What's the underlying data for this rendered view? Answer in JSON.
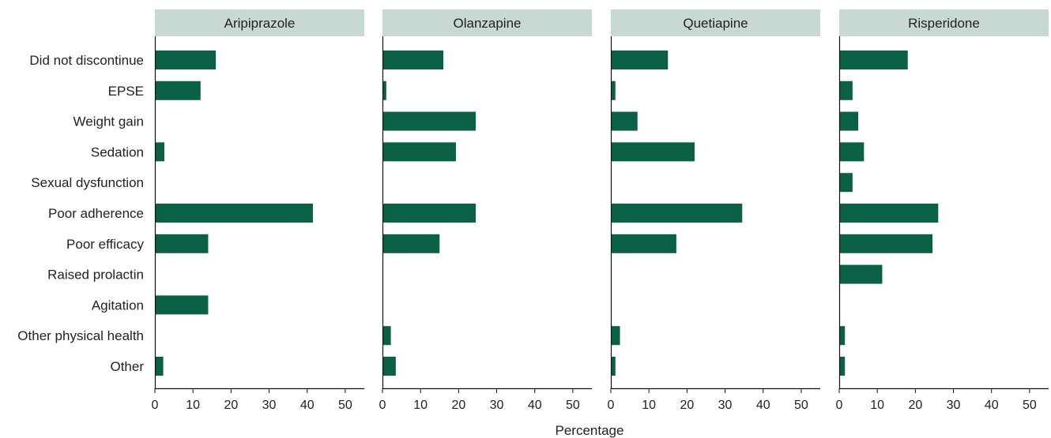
{
  "chart_data": {
    "type": "bar",
    "orientation": "horizontal",
    "xlabel": "Percentage",
    "xlim": [
      0,
      55
    ],
    "xticks": [
      0,
      10,
      20,
      30,
      40,
      50
    ],
    "categories": [
      "Did not discontinue",
      "EPSE",
      "Weight gain",
      "Sedation",
      "Sexual dysfunction",
      "Poor adherence",
      "Poor efficacy",
      "Raised prolactin",
      "Agitation",
      "Other physical health",
      "Other"
    ],
    "series": [
      {
        "name": "Aripiprazole",
        "values": [
          16,
          12,
          0,
          2.5,
          0,
          41.5,
          14,
          0,
          14,
          0,
          2.2
        ]
      },
      {
        "name": "Olanzapine",
        "values": [
          16,
          1,
          24.5,
          19.3,
          0,
          24.5,
          15,
          0,
          0,
          2.2,
          3.5
        ]
      },
      {
        "name": "Quetiapine",
        "values": [
          15,
          1.2,
          7,
          22,
          0,
          34.5,
          17.2,
          0,
          0,
          2.4,
          1.2
        ]
      },
      {
        "name": "Risperidone",
        "values": [
          18,
          3.5,
          5,
          6.5,
          3.5,
          26,
          24.5,
          11.3,
          0,
          1.5,
          1.5
        ]
      }
    ],
    "colors": {
      "bar": "#0a6146",
      "strip": "#c7d9d2",
      "axis": "#111111"
    },
    "grid": false
  }
}
